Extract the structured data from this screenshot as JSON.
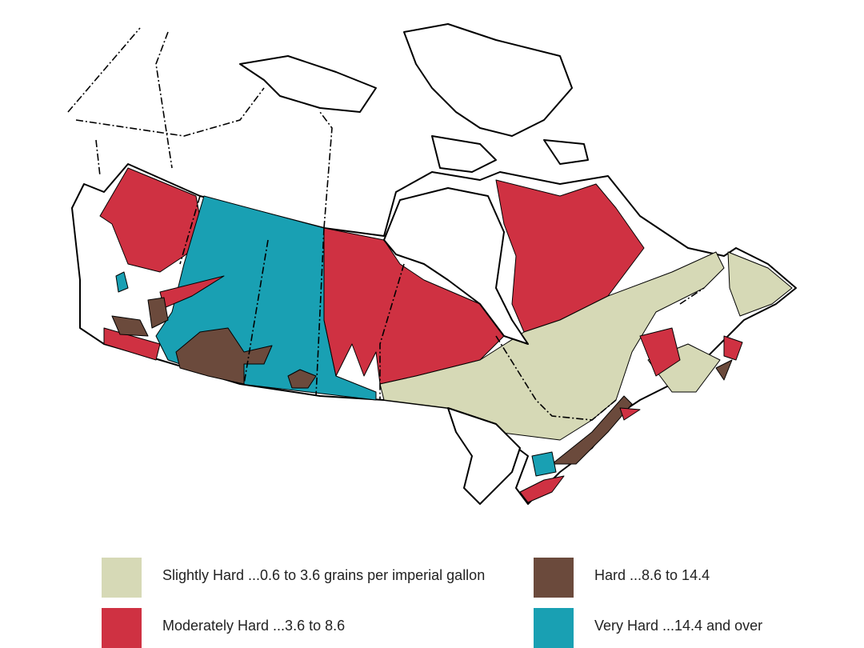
{
  "legend": [
    {
      "label": "Slightly Hard ...0.6 to 3.6 grains per imperial gallon",
      "color": "#d6d9b6"
    },
    {
      "label": "Moderately Hard ...3.6 to 8.6",
      "color": "#cf3142"
    },
    {
      "label": "Hard ...8.6 to 14.4",
      "color": "#6b4a3c"
    },
    {
      "label": "Very Hard ...14.4 and over",
      "color": "#19a0b3"
    }
  ]
}
